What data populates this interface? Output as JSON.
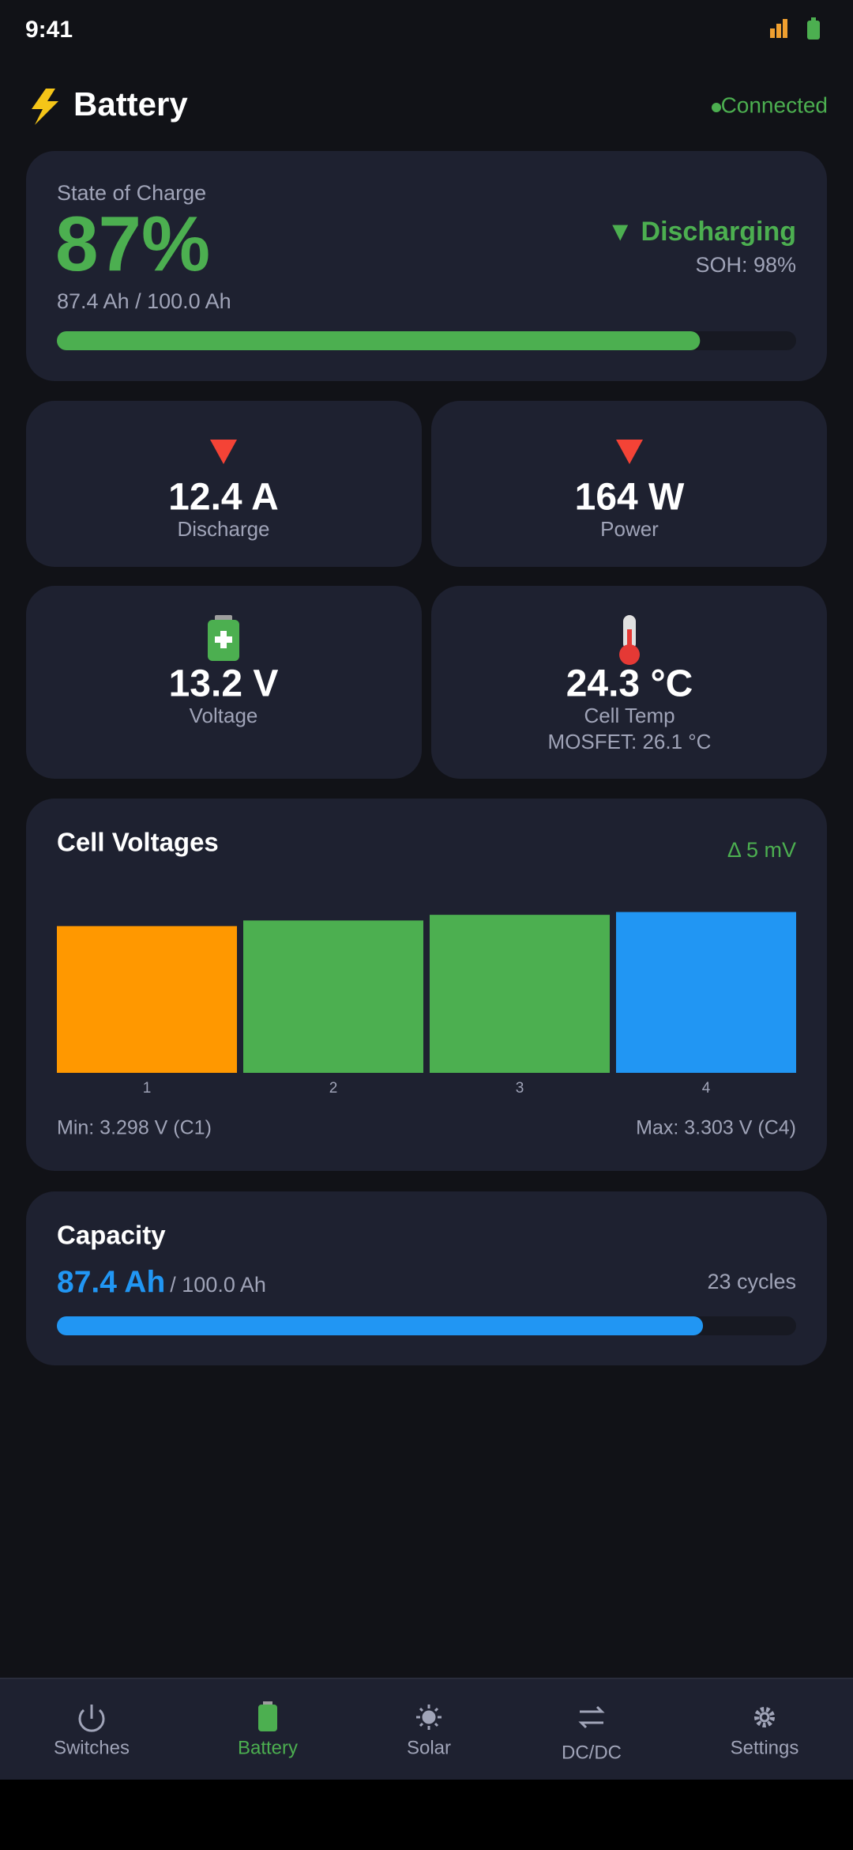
{
  "status_bar": {
    "time": "9:41"
  },
  "header": {
    "title": "Battery",
    "status": "Connected"
  },
  "state_of_charge": {
    "label": "State of Charge",
    "percent": {
      "value": 87,
      "label": "87%"
    },
    "capacity_text": "87.4 Ah / 100.0 Ah",
    "state": "▼ Discharging",
    "soh": "SOH: 98%"
  },
  "metrics": [
    {
      "value": "12.4 A",
      "label": "Discharge"
    },
    {
      "value": "164 W",
      "label": "Power"
    },
    {
      "value": "13.2 V",
      "label": "Voltage"
    },
    {
      "value": "24.3 °C",
      "label": "Cell Temp",
      "note": "MOSFET: 26.1 °C"
    }
  ],
  "cell_voltages": {
    "title": "Cell Voltages",
    "delta": "Δ 5 mV",
    "categories": [
      "1",
      "2",
      "3",
      "4"
    ],
    "values": [
      3.298,
      3.3,
      3.302,
      3.303
    ],
    "colors": [
      "#ff9800",
      "#4caf50",
      "#4caf50",
      "#2196f3"
    ],
    "ylim": [
      3.246,
      3.304
    ],
    "min_text": "Min: 3.298 V (C1)",
    "max_text": "Max: 3.303 V (C4)"
  },
  "capacity": {
    "title": "Capacity",
    "remaining": {
      "value": 87.4,
      "label": "87.4 Ah"
    },
    "total": {
      "value": 100,
      "label": "/ 100.0 Ah"
    },
    "cycles": "23 cycles"
  },
  "nav": [
    {
      "label": "Switches"
    },
    {
      "label": "Battery",
      "active": true
    },
    {
      "label": "Solar"
    },
    {
      "label": "DC/DC"
    },
    {
      "label": "Settings"
    }
  ]
}
